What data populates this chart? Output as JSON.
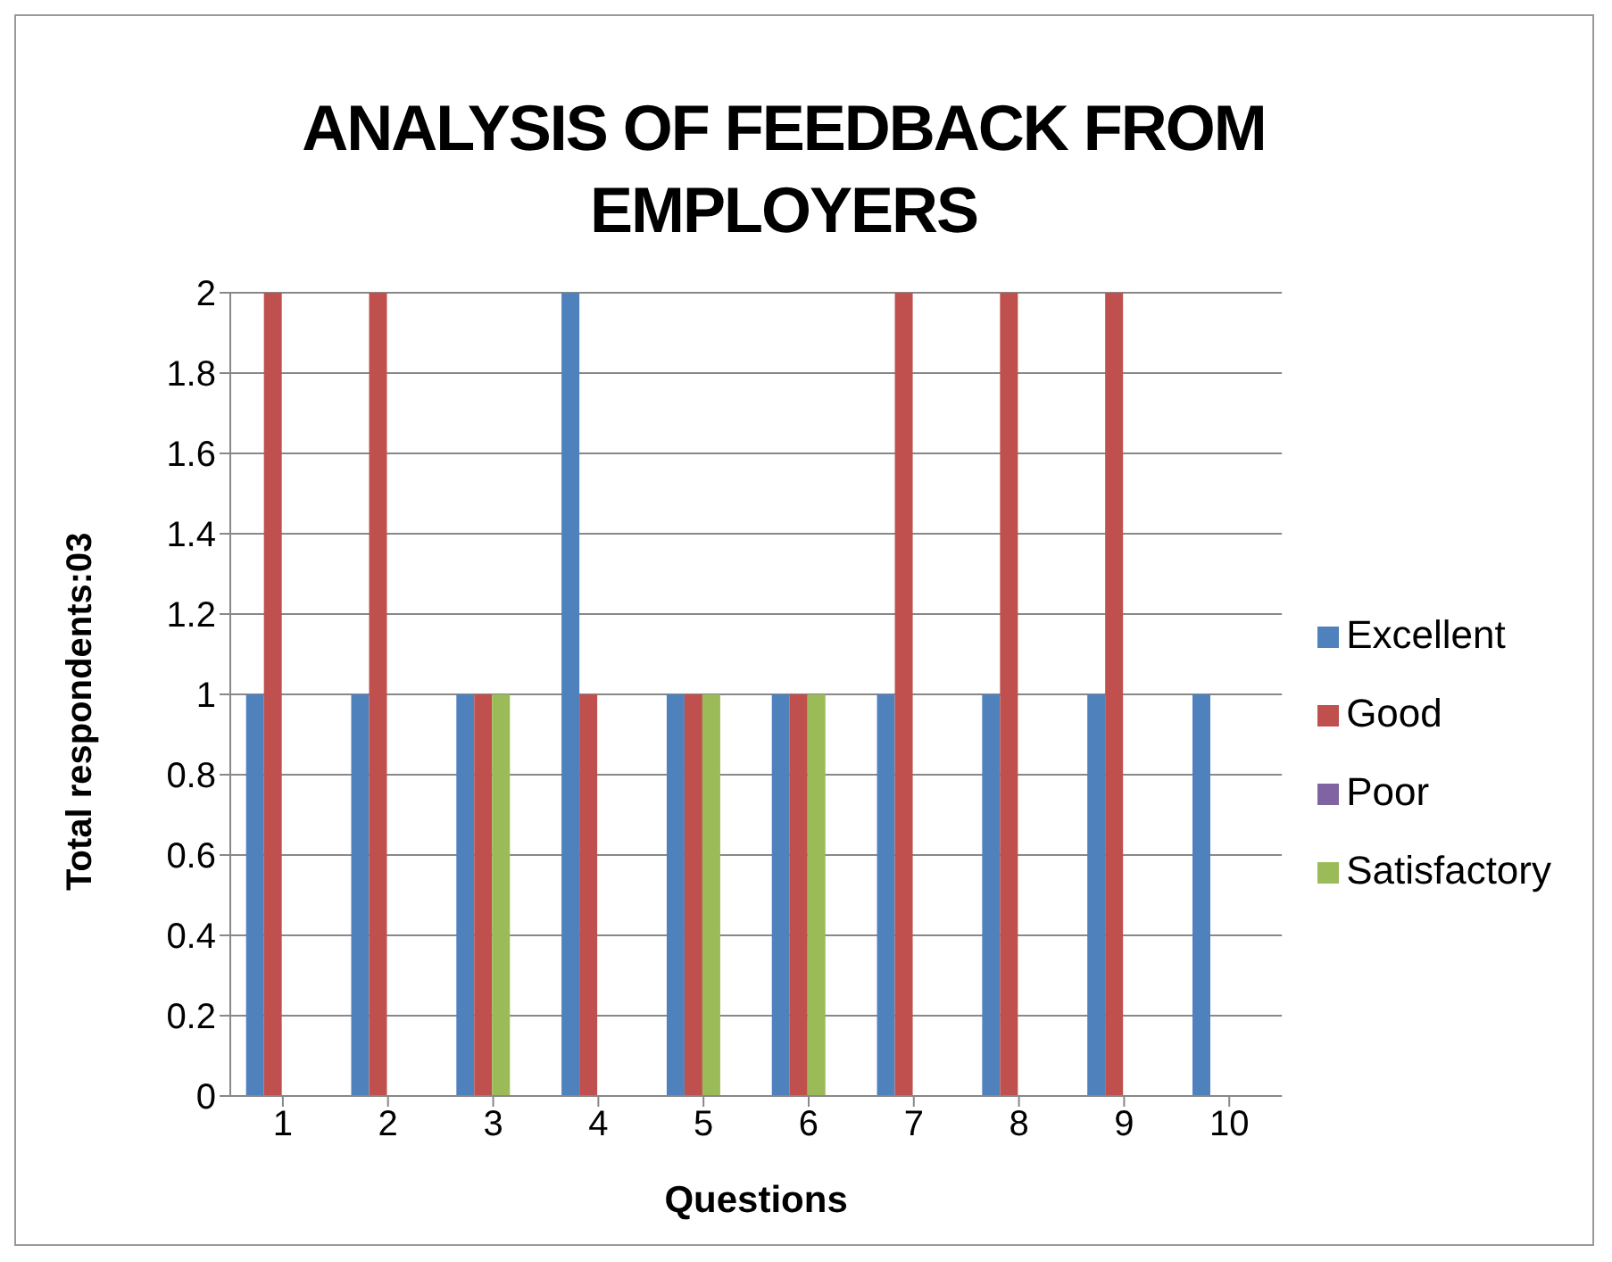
{
  "chart_data": {
    "type": "bar",
    "title": "ANALYSIS OF FEEDBACK FROM EMPLOYERS",
    "xlabel": "Questions",
    "ylabel": "Total respondents:03",
    "categories": [
      "1",
      "2",
      "3",
      "4",
      "5",
      "6",
      "7",
      "8",
      "9",
      "10"
    ],
    "series": [
      {
        "name": "Excellent",
        "color": "#4f81bd",
        "values": [
          1,
          1,
          1,
          2,
          1,
          1,
          1,
          1,
          1,
          1
        ]
      },
      {
        "name": "Good",
        "color": "#c0504d",
        "values": [
          2,
          2,
          1,
          1,
          1,
          1,
          2,
          2,
          2,
          0
        ]
      },
      {
        "name": "Satisfactory",
        "color": "#9bbb59",
        "values": [
          0,
          0,
          1,
          0,
          1,
          1,
          0,
          0,
          0,
          0
        ]
      },
      {
        "name": "Poor",
        "color": "#8064a2",
        "values": [
          0,
          0,
          0,
          0,
          0,
          0,
          0,
          0,
          0,
          0
        ]
      }
    ],
    "ylim": [
      0,
      2
    ],
    "yticks": [
      0,
      0.2,
      0.4,
      0.6,
      0.8,
      1,
      1.2,
      1.4,
      1.6,
      1.8,
      2
    ],
    "grid": "y",
    "legend": "right"
  }
}
